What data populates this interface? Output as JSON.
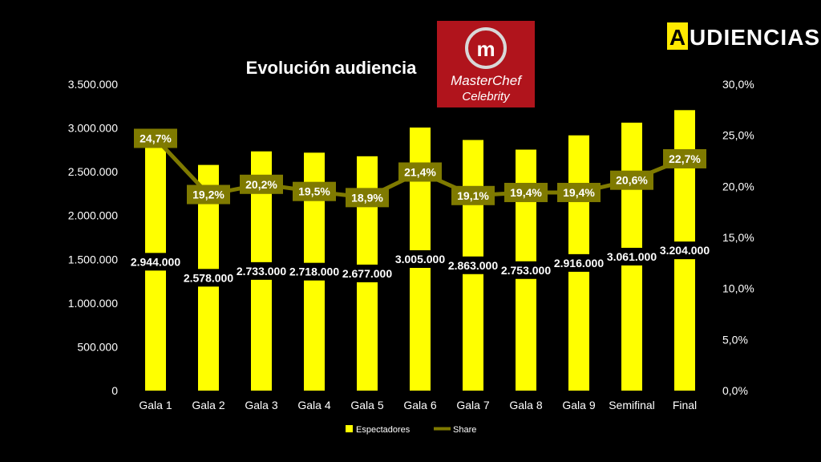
{
  "brand": {
    "initial": "A",
    "rest": "UDIENCIAS",
    "initial_bg": "#FFEA00"
  },
  "logo": {
    "line1": "MasterChef",
    "line2": "Celebrity",
    "initial": "m",
    "bg": "#B0141C"
  },
  "chart_data": {
    "type": "bar",
    "title": "Evolución audiencia",
    "categories": [
      "Gala 1",
      "Gala 2",
      "Gala 3",
      "Gala 4",
      "Gala 5",
      "Gala 6",
      "Gala 7",
      "Gala 8",
      "Gala 9",
      "Semifinal",
      "Final"
    ],
    "series": [
      {
        "name": "Espectadores",
        "axis": "left",
        "kind": "bar",
        "color": "#FFFF00",
        "values": [
          2944000,
          2578000,
          2733000,
          2718000,
          2677000,
          3005000,
          2863000,
          2753000,
          2916000,
          3061000,
          3204000
        ],
        "labels": [
          "2.944.000",
          "2.578.000",
          "2.733.000",
          "2.718.000",
          "2.677.000",
          "3.005.000",
          "2.863.000",
          "2.753.000",
          "2.916.000",
          "3.061.000",
          "3.204.000"
        ]
      },
      {
        "name": "Share",
        "axis": "right",
        "kind": "line",
        "color": "#7F7A00",
        "values": [
          24.7,
          19.2,
          20.2,
          19.5,
          18.9,
          21.4,
          19.1,
          19.4,
          19.4,
          20.6,
          22.7
        ],
        "labels": [
          "24,7%",
          "19,2%",
          "20,2%",
          "19,5%",
          "18,9%",
          "21,4%",
          "19,1%",
          "19,4%",
          "19,4%",
          "20,6%",
          "22,7%"
        ]
      }
    ],
    "y_left": {
      "range": [
        0,
        3500000
      ],
      "ticks": [
        0,
        500000,
        1000000,
        1500000,
        2000000,
        2500000,
        3000000,
        3500000
      ],
      "tick_labels": [
        "0",
        "500.000",
        "1.000.000",
        "1.500.000",
        "2.000.000",
        "2.500.000",
        "3.000.000",
        "3.500.000"
      ]
    },
    "y_right": {
      "range": [
        0,
        30
      ],
      "ticks": [
        0,
        5,
        10,
        15,
        20,
        25,
        30
      ],
      "tick_labels": [
        "0,0%",
        "5,0%",
        "10,0%",
        "15,0%",
        "20,0%",
        "25,0%",
        "30,0%"
      ]
    },
    "grid": false,
    "legend": {
      "position": "bottom",
      "entries": [
        "Espectadores",
        "Share"
      ]
    }
  }
}
